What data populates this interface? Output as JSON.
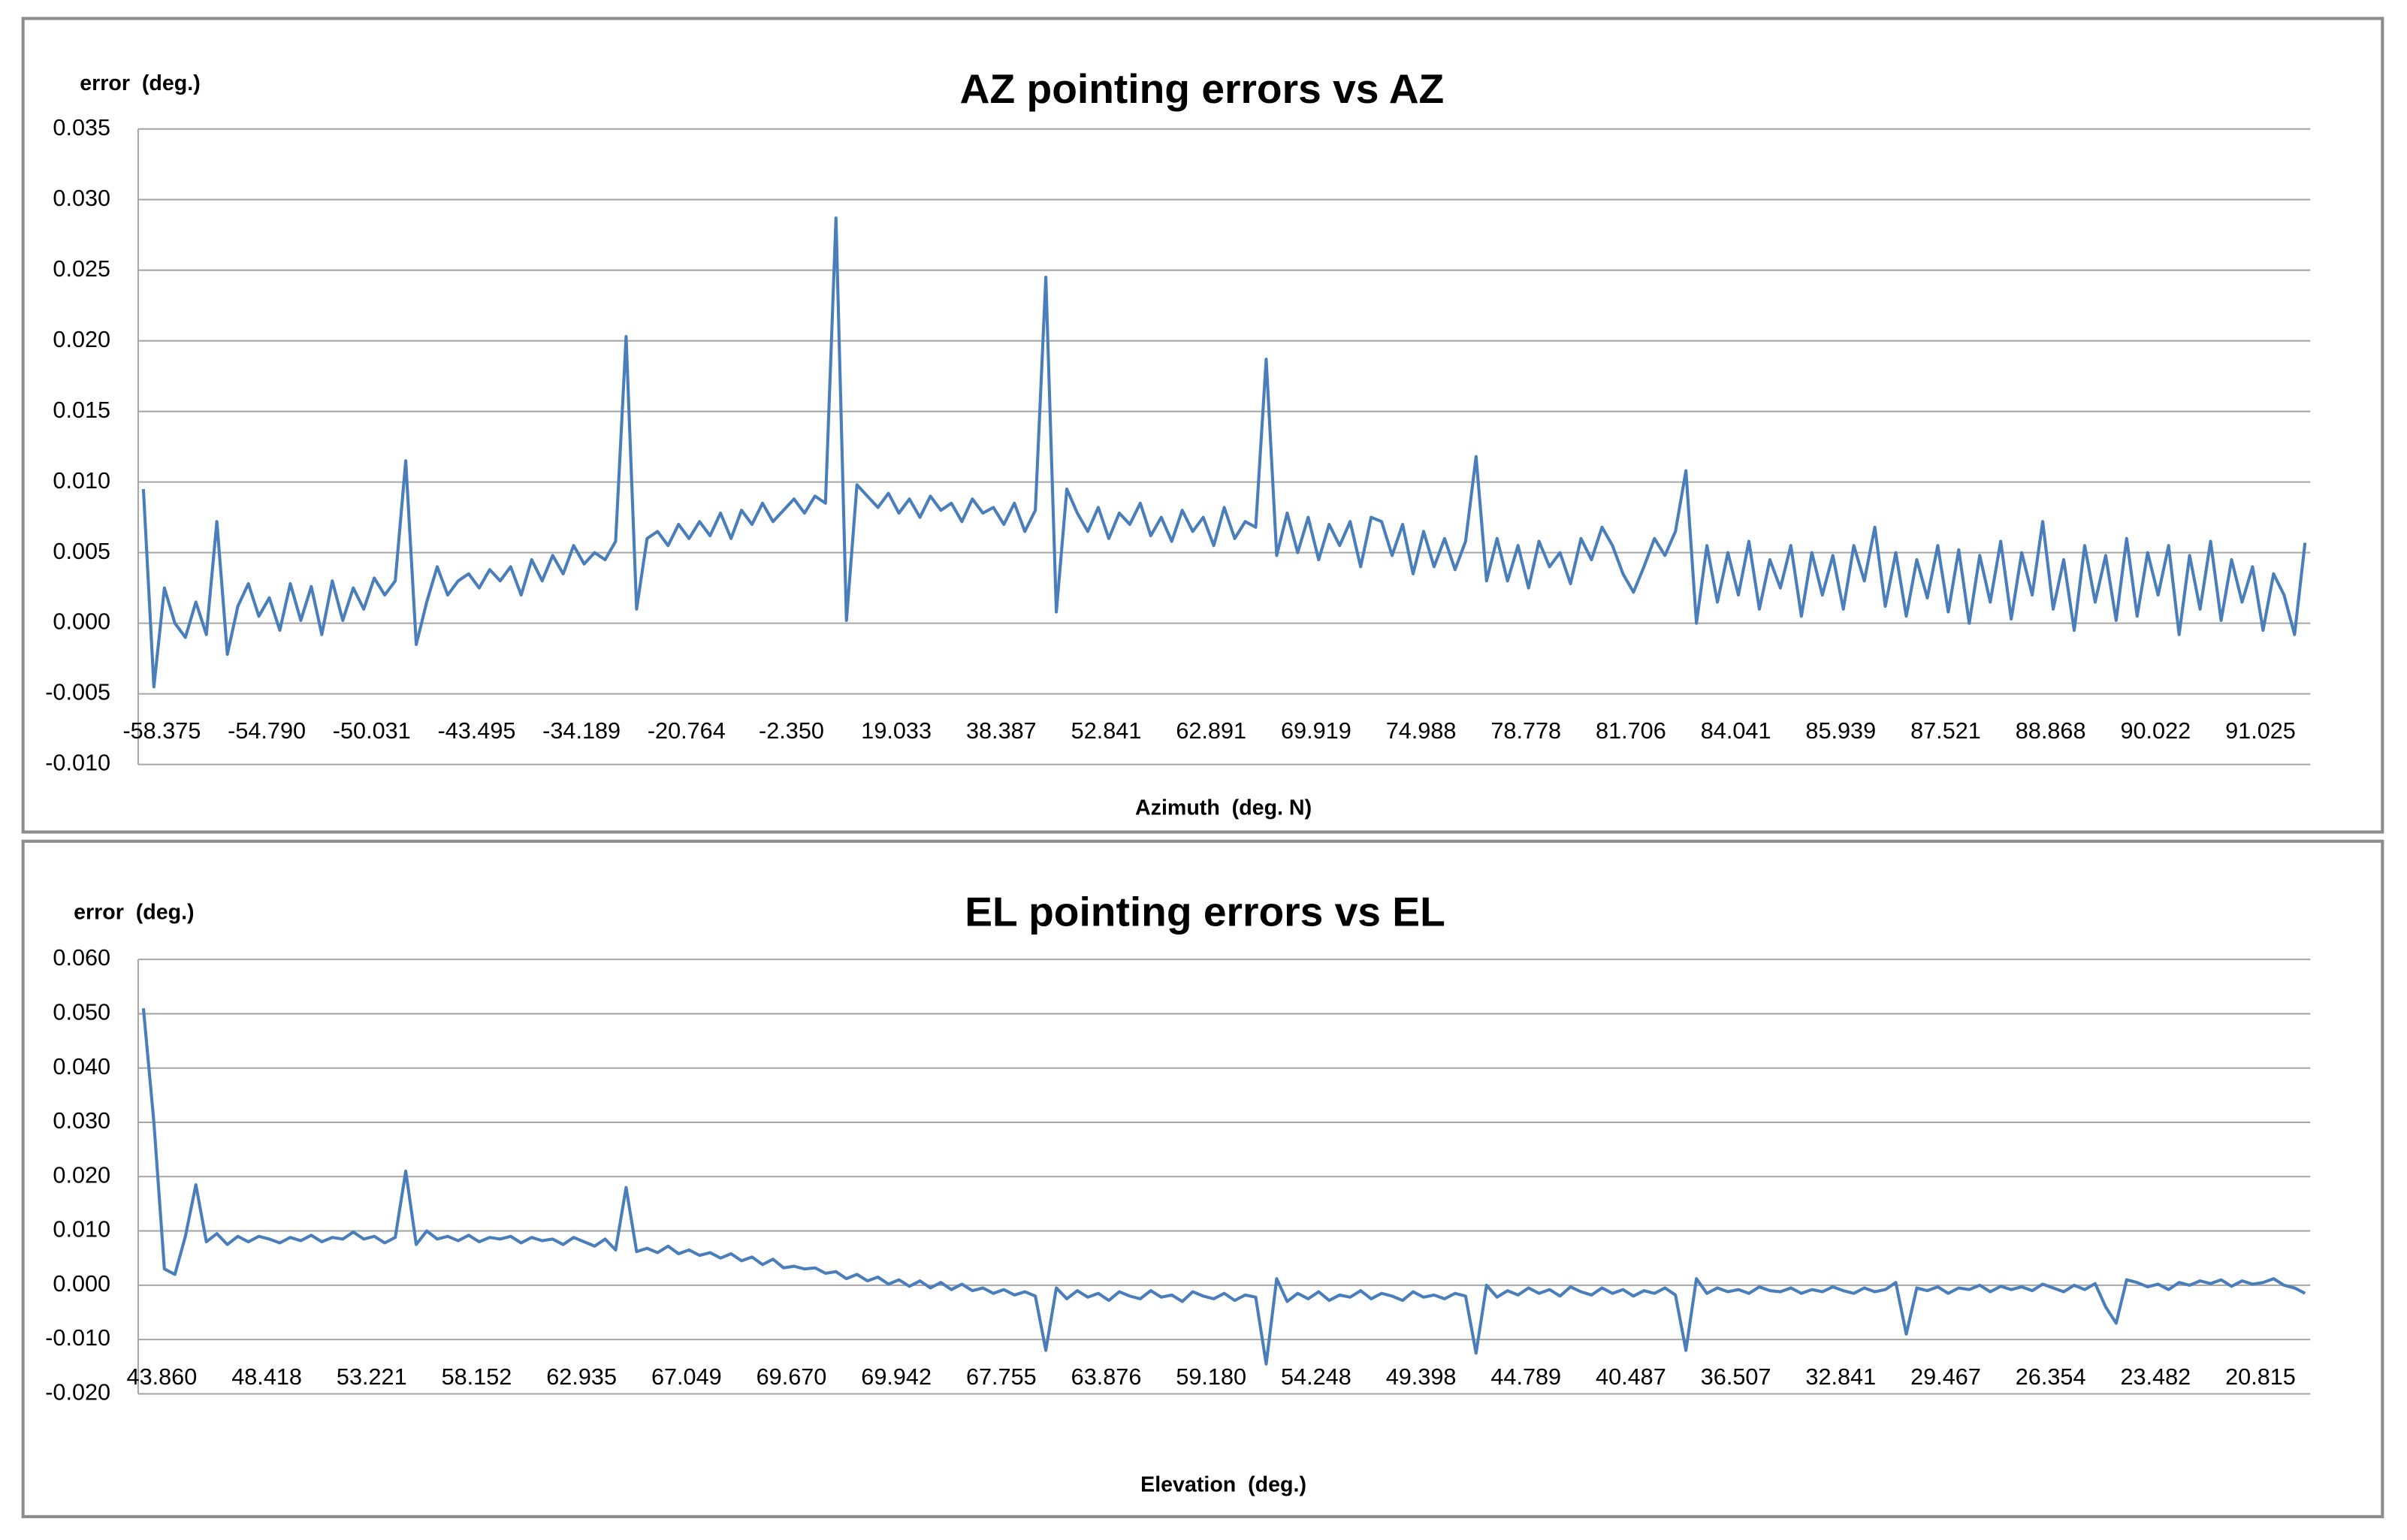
{
  "chart_data": [
    {
      "type": "line",
      "title": "AZ pointing errors vs  AZ",
      "y_label": "error  (deg.)",
      "x_label": "Azimuth  (deg. N)",
      "color": "#4a7ebb",
      "grid": true,
      "ylim": [
        -0.01,
        0.035
      ],
      "yticks": [
        {
          "value": -0.01,
          "label": "-0.010"
        },
        -0.005,
        {
          "value": 0.0,
          "label": "0.000"
        },
        0.005,
        {
          "value": 0.01,
          "label": "0.010"
        },
        0.015,
        {
          "value": 0.02,
          "label": "0.020"
        },
        0.025,
        {
          "value": 0.03,
          "label": "0.030"
        },
        0.035
      ],
      "categories": [
        "-58.375",
        null,
        null,
        null,
        null,
        null,
        null,
        null,
        null,
        null,
        "-54.790",
        null,
        null,
        null,
        null,
        null,
        null,
        null,
        null,
        null,
        "-50.031",
        null,
        null,
        null,
        null,
        null,
        null,
        null,
        null,
        null,
        "-43.495",
        null,
        null,
        null,
        null,
        null,
        null,
        null,
        null,
        null,
        "-34.189",
        null,
        null,
        null,
        null,
        null,
        null,
        null,
        null,
        null,
        "-20.764",
        null,
        null,
        null,
        null,
        null,
        null,
        null,
        null,
        null,
        "-2.350",
        null,
        null,
        null,
        null,
        null,
        null,
        null,
        null,
        null,
        "19.033",
        null,
        null,
        null,
        null,
        null,
        null,
        null,
        null,
        null,
        "38.387",
        null,
        null,
        null,
        null,
        null,
        null,
        null,
        null,
        null,
        "52.841",
        null,
        null,
        null,
        null,
        null,
        null,
        null,
        null,
        null,
        "62.891",
        null,
        null,
        null,
        null,
        null,
        null,
        null,
        null,
        null,
        "69.919",
        null,
        null,
        null,
        null,
        null,
        null,
        null,
        null,
        null,
        "74.988",
        null,
        null,
        null,
        null,
        null,
        null,
        null,
        null,
        null,
        "78.778",
        null,
        null,
        null,
        null,
        null,
        null,
        null,
        null,
        null,
        "81.706",
        null,
        null,
        null,
        null,
        null,
        null,
        null,
        null,
        null,
        "84.041",
        null,
        null,
        null,
        null,
        null,
        null,
        null,
        null,
        null,
        "85.939",
        null,
        null,
        null,
        null,
        null,
        null,
        null,
        null,
        null,
        "87.521",
        null,
        null,
        null,
        null,
        null,
        null,
        null,
        null,
        null,
        "88.868",
        null,
        null,
        null,
        null,
        null,
        null,
        null,
        null,
        null,
        "90.022",
        null,
        null,
        null,
        null,
        null,
        null,
        null,
        null,
        null,
        "91.025",
        null,
        null,
        null,
        null,
        null,
        null
      ],
      "values": [
        0.0095,
        -0.0045,
        0.0025,
        0.0,
        -0.001,
        0.0015,
        -0.0008,
        0.0072,
        -0.0022,
        0.0012,
        0.0028,
        0.0005,
        0.0018,
        -0.0005,
        0.0028,
        0.0002,
        0.0026,
        -0.0008,
        0.003,
        0.0002,
        0.0025,
        0.001,
        0.0032,
        0.002,
        0.003,
        0.0115,
        -0.0015,
        0.0015,
        0.004,
        0.002,
        0.003,
        0.0035,
        0.0025,
        0.0038,
        0.003,
        0.004,
        0.002,
        0.0045,
        0.003,
        0.0048,
        0.0035,
        0.0055,
        0.0042,
        0.005,
        0.0045,
        0.0058,
        0.0203,
        0.001,
        0.006,
        0.0065,
        0.0055,
        0.007,
        0.006,
        0.0072,
        0.0062,
        0.0078,
        0.006,
        0.008,
        0.007,
        0.0085,
        0.0072,
        0.008,
        0.0088,
        0.0078,
        0.009,
        0.0085,
        0.0287,
        0.0002,
        0.0098,
        0.009,
        0.0082,
        0.0092,
        0.0078,
        0.0088,
        0.0075,
        0.009,
        0.008,
        0.0085,
        0.0072,
        0.0088,
        0.0078,
        0.0082,
        0.007,
        0.0085,
        0.0065,
        0.008,
        0.0245,
        0.0008,
        0.0095,
        0.0078,
        0.0065,
        0.0082,
        0.006,
        0.0078,
        0.007,
        0.0085,
        0.0062,
        0.0075,
        0.0058,
        0.008,
        0.0065,
        0.0075,
        0.0055,
        0.0082,
        0.006,
        0.0072,
        0.0068,
        0.0187,
        0.0048,
        0.0078,
        0.005,
        0.0075,
        0.0045,
        0.007,
        0.0055,
        0.0072,
        0.004,
        0.0075,
        0.0072,
        0.0048,
        0.007,
        0.0035,
        0.0065,
        0.004,
        0.006,
        0.0038,
        0.0058,
        0.0118,
        0.003,
        0.006,
        0.003,
        0.0055,
        0.0025,
        0.0058,
        0.004,
        0.005,
        0.0028,
        0.006,
        0.0045,
        0.0068,
        0.0055,
        0.0035,
        0.0022,
        0.004,
        0.006,
        0.0048,
        0.0065,
        0.0108,
        0.0,
        0.0055,
        0.0015,
        0.005,
        0.002,
        0.0058,
        0.001,
        0.0045,
        0.0025,
        0.0055,
        0.0005,
        0.005,
        0.002,
        0.0048,
        0.001,
        0.0055,
        0.003,
        0.0068,
        0.0012,
        0.005,
        0.0005,
        0.0045,
        0.0018,
        0.0055,
        0.0008,
        0.0052,
        0.0,
        0.0048,
        0.0015,
        0.0058,
        0.0003,
        0.005,
        0.002,
        0.0072,
        0.001,
        0.0045,
        -0.0005,
        0.0055,
        0.0015,
        0.0048,
        0.0002,
        0.006,
        0.0005,
        0.005,
        0.002,
        0.0055,
        -0.0008,
        0.0048,
        0.001,
        0.0058,
        0.0002,
        0.0045,
        0.0015,
        0.004,
        -0.0005,
        0.0035,
        0.002,
        -0.0008,
        0.0057
      ]
    },
    {
      "type": "line",
      "title": "EL pointing errors vs EL",
      "y_label": "error  (deg.)",
      "x_label": "Elevation  (deg.)",
      "color": "#4a7ebb",
      "grid": true,
      "ylim": [
        -0.02,
        0.06
      ],
      "yticks": [
        {
          "value": -0.02,
          "label": "-0.020"
        },
        {
          "value": -0.01,
          "label": "-0.010"
        },
        {
          "value": 0.0,
          "label": "0.000"
        },
        {
          "value": 0.01,
          "label": "0.010"
        },
        {
          "value": 0.02,
          "label": "0.020"
        },
        {
          "value": 0.03,
          "label": "0.030"
        },
        {
          "value": 0.04,
          "label": "0.040"
        },
        {
          "value": 0.05,
          "label": "0.050"
        },
        {
          "value": 0.06,
          "label": "0.060"
        }
      ],
      "categories": [
        "43.860",
        null,
        null,
        null,
        null,
        null,
        null,
        null,
        null,
        null,
        "48.418",
        null,
        null,
        null,
        null,
        null,
        null,
        null,
        null,
        null,
        "53.221",
        null,
        null,
        null,
        null,
        null,
        null,
        null,
        null,
        null,
        "58.152",
        null,
        null,
        null,
        null,
        null,
        null,
        null,
        null,
        null,
        "62.935",
        null,
        null,
        null,
        null,
        null,
        null,
        null,
        null,
        null,
        "67.049",
        null,
        null,
        null,
        null,
        null,
        null,
        null,
        null,
        null,
        "69.670",
        null,
        null,
        null,
        null,
        null,
        null,
        null,
        null,
        null,
        "69.942",
        null,
        null,
        null,
        null,
        null,
        null,
        null,
        null,
        null,
        "67.755",
        null,
        null,
        null,
        null,
        null,
        null,
        null,
        null,
        null,
        "63.876",
        null,
        null,
        null,
        null,
        null,
        null,
        null,
        null,
        null,
        "59.180",
        null,
        null,
        null,
        null,
        null,
        null,
        null,
        null,
        null,
        "54.248",
        null,
        null,
        null,
        null,
        null,
        null,
        null,
        null,
        null,
        "49.398",
        null,
        null,
        null,
        null,
        null,
        null,
        null,
        null,
        null,
        "44.789",
        null,
        null,
        null,
        null,
        null,
        null,
        null,
        null,
        null,
        "40.487",
        null,
        null,
        null,
        null,
        null,
        null,
        null,
        null,
        null,
        "36.507",
        null,
        null,
        null,
        null,
        null,
        null,
        null,
        null,
        null,
        "32.841",
        null,
        null,
        null,
        null,
        null,
        null,
        null,
        null,
        null,
        "29.467",
        null,
        null,
        null,
        null,
        null,
        null,
        null,
        null,
        null,
        "26.354",
        null,
        null,
        null,
        null,
        null,
        null,
        null,
        null,
        null,
        "23.482",
        null,
        null,
        null,
        null,
        null,
        null,
        null,
        null,
        null,
        "20.815",
        null,
        null,
        null,
        null,
        null,
        null
      ],
      "values": [
        0.051,
        0.03,
        0.003,
        0.002,
        0.009,
        0.0185,
        0.008,
        0.0095,
        0.0075,
        0.009,
        0.008,
        0.009,
        0.0085,
        0.0078,
        0.0088,
        0.0082,
        0.0092,
        0.008,
        0.0088,
        0.0085,
        0.0098,
        0.0085,
        0.009,
        0.0078,
        0.0088,
        0.021,
        0.0075,
        0.01,
        0.0085,
        0.009,
        0.0082,
        0.0092,
        0.008,
        0.0088,
        0.0085,
        0.009,
        0.0078,
        0.0088,
        0.0082,
        0.0085,
        0.0075,
        0.0088,
        0.008,
        0.0072,
        0.0085,
        0.0065,
        0.018,
        0.0062,
        0.0068,
        0.006,
        0.0072,
        0.0058,
        0.0065,
        0.0055,
        0.006,
        0.005,
        0.0058,
        0.0045,
        0.0052,
        0.0038,
        0.0048,
        0.0032,
        0.0035,
        0.003,
        0.0032,
        0.0022,
        0.0025,
        0.0012,
        0.002,
        0.0008,
        0.0015,
        0.0002,
        0.001,
        -0.0002,
        0.0008,
        -0.0005,
        0.0005,
        -0.0008,
        0.0002,
        -0.001,
        -0.0005,
        -0.0015,
        -0.0008,
        -0.0018,
        -0.0012,
        -0.002,
        -0.012,
        -0.0005,
        -0.0025,
        -0.001,
        -0.0022,
        -0.0015,
        -0.0028,
        -0.0012,
        -0.002,
        -0.0025,
        -0.001,
        -0.0022,
        -0.0018,
        -0.003,
        -0.0012,
        -0.002,
        -0.0025,
        -0.0015,
        -0.0028,
        -0.0018,
        -0.0022,
        -0.0145,
        0.0012,
        -0.003,
        -0.0015,
        -0.0025,
        -0.0012,
        -0.0028,
        -0.0018,
        -0.0022,
        -0.001,
        -0.0025,
        -0.0015,
        -0.002,
        -0.0028,
        -0.0012,
        -0.0022,
        -0.0018,
        -0.0025,
        -0.0015,
        -0.002,
        -0.0125,
        0.0,
        -0.0022,
        -0.001,
        -0.0018,
        -0.0005,
        -0.0015,
        -0.0008,
        -0.002,
        -0.0003,
        -0.0012,
        -0.0018,
        -0.0005,
        -0.0015,
        -0.0008,
        -0.002,
        -0.001,
        -0.0015,
        -0.0005,
        -0.0018,
        -0.012,
        0.0012,
        -0.0015,
        -0.0005,
        -0.0012,
        -0.0008,
        -0.0015,
        -0.0003,
        -0.001,
        -0.0012,
        -0.0005,
        -0.0015,
        -0.0008,
        -0.0012,
        -0.0003,
        -0.001,
        -0.0015,
        -0.0005,
        -0.0012,
        -0.0008,
        0.0005,
        -0.009,
        -0.0005,
        -0.001,
        -0.0003,
        -0.0015,
        -0.0005,
        -0.0008,
        0.0,
        -0.0012,
        -0.0002,
        -0.0008,
        -0.0003,
        -0.001,
        0.0002,
        -0.0005,
        -0.0012,
        0.0,
        -0.0008,
        0.0003,
        -0.004,
        -0.007,
        0.001,
        0.0005,
        -0.0003,
        0.0002,
        -0.0008,
        0.0005,
        0.0,
        0.0008,
        0.0003,
        0.001,
        -0.0002,
        0.0008,
        0.0002,
        0.0005,
        0.0012,
        0.0,
        -0.0005,
        -0.0015
      ]
    }
  ]
}
